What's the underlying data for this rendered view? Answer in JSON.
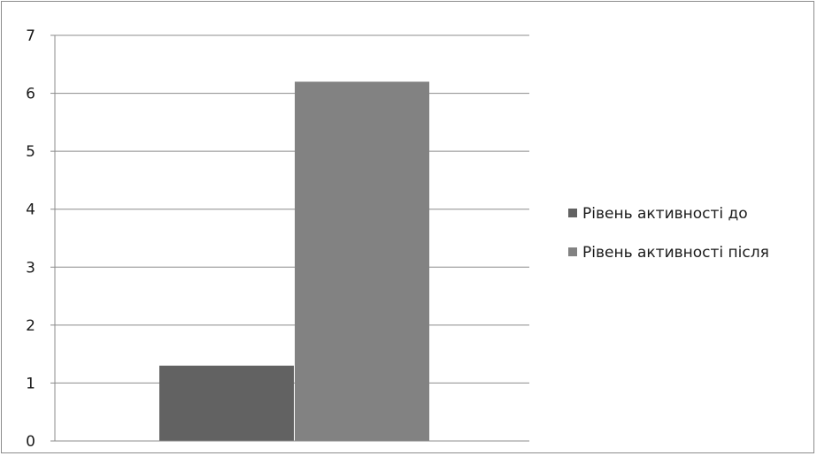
{
  "chart_data": {
    "type": "bar",
    "categories": [
      ""
    ],
    "series": [
      {
        "name": "Рівень активності до",
        "values": [
          1.3
        ],
        "color": "#626262"
      },
      {
        "name": "Рівень активності після",
        "values": [
          6.2
        ],
        "color": "#828282"
      }
    ],
    "ylim": [
      0,
      7
    ],
    "yticks": [
      "0",
      "1",
      "2",
      "3",
      "4",
      "5",
      "6",
      "7"
    ],
    "grid": true,
    "legend_position": "right",
    "title": "",
    "xlabel": "",
    "ylabel": ""
  }
}
